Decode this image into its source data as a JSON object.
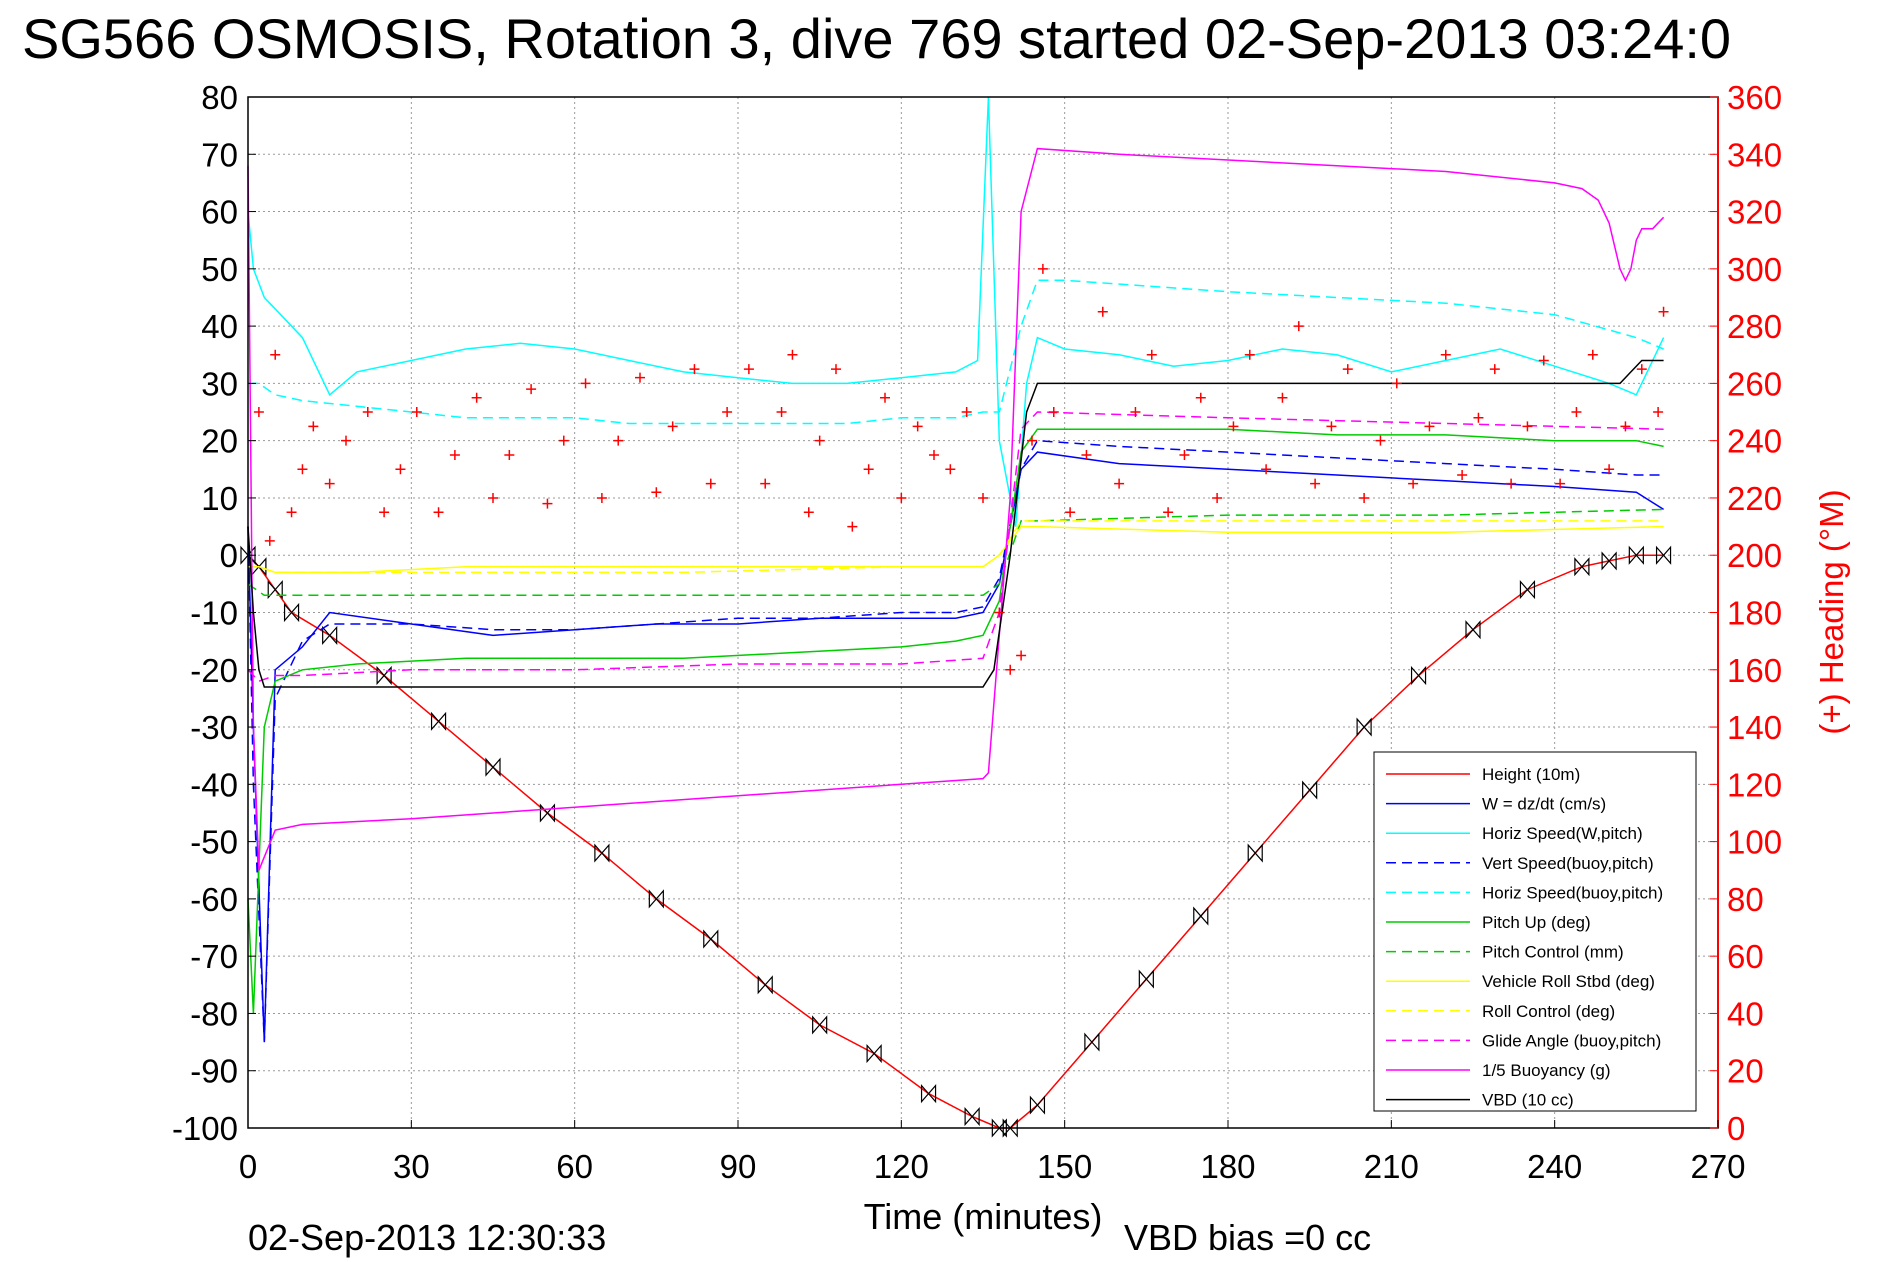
{
  "page": {
    "title": "SG566 OSMOSIS, Rotation 3, dive 769 started 02-Sep-2013 03:24:0",
    "timestamp": "02-Sep-2013 12:30:33",
    "vbd_bias": "VBD bias =0 cc"
  },
  "chart_data": {
    "type": "line",
    "title": "SG566 OSMOSIS, Rotation 3, dive 769 started 02-Sep-2013 03:24:0",
    "xlabel": "Time (minutes)",
    "ylabel": "",
    "y2label": "(+) Heading (°M)",
    "xlim": [
      0,
      270
    ],
    "ylim": [
      -100,
      80
    ],
    "y2lim": [
      0,
      360
    ],
    "x_ticks": [
      0,
      30,
      60,
      90,
      120,
      150,
      180,
      210,
      240,
      270
    ],
    "y_ticks": [
      80,
      70,
      60,
      50,
      40,
      30,
      20,
      10,
      0,
      -10,
      -20,
      -30,
      -40,
      -50,
      -60,
      -70,
      -80,
      -90,
      -100
    ],
    "y2_ticks": [
      360,
      340,
      320,
      300,
      280,
      260,
      240,
      220,
      200,
      180,
      160,
      140,
      120,
      100,
      80,
      60,
      40,
      20,
      0
    ],
    "grid": true,
    "legend_position": "bottom-right",
    "series": [
      {
        "name": "Height (10m)",
        "color": "#ff0000",
        "dash": "solid",
        "marker": "hourglass",
        "x": [
          0,
          2,
          5,
          8,
          15,
          25,
          35,
          45,
          55,
          65,
          75,
          85,
          95,
          105,
          115,
          125,
          133,
          138,
          140,
          145,
          155,
          165,
          175,
          185,
          195,
          205,
          215,
          225,
          235,
          245,
          250,
          255,
          260
        ],
        "y": [
          0,
          -2,
          -6,
          -10,
          -14,
          -21,
          -29,
          -37,
          -45,
          -52,
          -60,
          -67,
          -75,
          -82,
          -87,
          -94,
          -98,
          -100,
          -100,
          -96,
          -85,
          -74,
          -63,
          -52,
          -41,
          -30,
          -21,
          -13,
          -6,
          -2,
          -1,
          0,
          0
        ]
      },
      {
        "name": "W = dz/dt (cm/s)",
        "color": "#0000ff",
        "dash": "solid",
        "x": [
          0,
          1,
          3,
          5,
          10,
          15,
          30,
          45,
          60,
          75,
          90,
          105,
          120,
          130,
          135,
          138,
          142,
          145,
          160,
          180,
          200,
          220,
          240,
          255,
          260
        ],
        "y": [
          5,
          -30,
          -85,
          -20,
          -16,
          -10,
          -12,
          -14,
          -13,
          -12,
          -12,
          -11,
          -11,
          -11,
          -10,
          -5,
          15,
          18,
          16,
          15,
          14,
          13,
          12,
          11,
          8
        ]
      },
      {
        "name": "Horiz Speed(W,pitch)",
        "color": "#00ffff",
        "dash": "solid",
        "x": [
          0,
          1,
          3,
          6,
          10,
          15,
          20,
          30,
          40,
          50,
          60,
          70,
          80,
          90,
          100,
          110,
          120,
          130,
          134,
          136,
          138,
          141,
          143,
          145,
          150,
          160,
          170,
          180,
          190,
          200,
          210,
          220,
          230,
          240,
          250,
          255,
          260
        ],
        "y": [
          60,
          50,
          45,
          42,
          38,
          28,
          32,
          34,
          36,
          37,
          36,
          34,
          32,
          31,
          30,
          30,
          31,
          32,
          34,
          80,
          20,
          5,
          30,
          38,
          36,
          35,
          33,
          34,
          36,
          35,
          32,
          34,
          36,
          33,
          30,
          28,
          38
        ]
      },
      {
        "name": "Vert Speed(buoy,pitch)",
        "color": "#0000ff",
        "dash": "dashed",
        "x": [
          0,
          1,
          3,
          5,
          10,
          15,
          30,
          45,
          60,
          75,
          90,
          105,
          120,
          130,
          135,
          138,
          142,
          145,
          160,
          180,
          200,
          220,
          240,
          255,
          260
        ],
        "y": [
          5,
          -40,
          -85,
          -25,
          -15,
          -12,
          -12,
          -13,
          -13,
          -12,
          -11,
          -11,
          -10,
          -10,
          -9,
          -4,
          15,
          20,
          19,
          18,
          17,
          16,
          15,
          14,
          14
        ]
      },
      {
        "name": "Horiz Speed(buoy,pitch)",
        "color": "#00ffff",
        "dash": "dashed",
        "x": [
          0,
          2,
          5,
          10,
          20,
          30,
          40,
          50,
          60,
          70,
          80,
          90,
          100,
          110,
          120,
          130,
          135,
          138,
          142,
          145,
          150,
          165,
          180,
          200,
          220,
          240,
          255,
          260
        ],
        "y": [
          30,
          30,
          28,
          27,
          26,
          25,
          24,
          24,
          24,
          23,
          23,
          23,
          23,
          23,
          24,
          24,
          25,
          25,
          40,
          48,
          48,
          47,
          46,
          45,
          44,
          42,
          38,
          36
        ]
      },
      {
        "name": "Pitch Up (deg)",
        "color": "#00cc00",
        "dash": "solid",
        "x": [
          0,
          1,
          3,
          5,
          10,
          20,
          40,
          60,
          80,
          100,
          120,
          130,
          135,
          138,
          142,
          145,
          160,
          180,
          200,
          220,
          240,
          255,
          260
        ],
        "y": [
          -60,
          -80,
          -30,
          -22,
          -20,
          -19,
          -18,
          -18,
          -18,
          -17,
          -16,
          -15,
          -14,
          -8,
          18,
          22,
          22,
          22,
          21,
          21,
          20,
          20,
          19
        ]
      },
      {
        "name": "Pitch Control (mm)",
        "color": "#00cc00",
        "dash": "dashed",
        "x": [
          0,
          3,
          10,
          30,
          60,
          90,
          120,
          135,
          138,
          142,
          145,
          180,
          220,
          260
        ],
        "y": [
          -5,
          -7,
          -7,
          -7,
          -7,
          -7,
          -7,
          -7,
          -5,
          6,
          6,
          7,
          7,
          8
        ]
      },
      {
        "name": "Vehicle Roll Stbd (deg)",
        "color": "#ffff00",
        "dash": "solid",
        "x": [
          0,
          2,
          5,
          10,
          20,
          40,
          60,
          80,
          100,
          120,
          135,
          138,
          142,
          145,
          180,
          220,
          260
        ],
        "y": [
          -2,
          -2,
          -3,
          -3,
          -3,
          -2,
          -2,
          -2,
          -2,
          -2,
          -2,
          0,
          5,
          5,
          4,
          4,
          5
        ]
      },
      {
        "name": "Roll Control (deg)",
        "color": "#ffff00",
        "dash": "dashed",
        "x": [
          0,
          2,
          5,
          10,
          40,
          80,
          120,
          135,
          138,
          142,
          145,
          180,
          220,
          260
        ],
        "y": [
          -2,
          -2,
          -3,
          -3,
          -3,
          -3,
          -2,
          -2,
          0,
          6,
          6,
          6,
          6,
          6
        ]
      },
      {
        "name": "Glide Angle (buoy,pitch)",
        "color": "#ff00ff",
        "dash": "dashed",
        "x": [
          0,
          2,
          5,
          10,
          30,
          60,
          90,
          120,
          135,
          138,
          142,
          145,
          180,
          220,
          260
        ],
        "y": [
          -20,
          -22,
          -21,
          -21,
          -20,
          -20,
          -19,
          -19,
          -18,
          -10,
          22,
          25,
          24,
          23,
          22
        ]
      },
      {
        "name": "1/5 Buoyancy (g)",
        "color": "#ff00ff",
        "dash": "solid",
        "x": [
          0,
          1,
          2,
          5,
          10,
          30,
          60,
          90,
          120,
          135,
          136,
          140,
          142,
          145,
          160,
          180,
          200,
          220,
          240,
          245,
          248,
          250,
          252,
          253,
          254,
          255,
          256,
          258,
          260
        ],
        "y": [
          68,
          -30,
          -55,
          -48,
          -47,
          -46,
          -44,
          -42,
          -40,
          -39,
          -38,
          10,
          60,
          71,
          70,
          69,
          68,
          67,
          65,
          64,
          62,
          58,
          50,
          48,
          50,
          55,
          57,
          57,
          59
        ]
      },
      {
        "name": "VBD (10 cc)",
        "color": "#000000",
        "dash": "solid",
        "x": [
          0,
          1,
          2,
          3,
          5,
          135,
          137,
          140,
          143,
          145,
          150,
          200,
          250,
          252,
          254,
          256,
          258,
          260
        ],
        "y": [
          5,
          -10,
          -20,
          -23,
          -23,
          -23,
          -20,
          0,
          25,
          30,
          30,
          30,
          30,
          30,
          32,
          34,
          34,
          34
        ]
      },
      {
        "name": "(+) Heading (°M)",
        "color": "#ff0000",
        "marker": "plus",
        "axis": "right",
        "in_legend": false,
        "x": [
          2,
          4,
          5,
          8,
          10,
          12,
          15,
          18,
          22,
          25,
          28,
          31,
          35,
          38,
          42,
          45,
          48,
          52,
          55,
          58,
          62,
          65,
          68,
          72,
          75,
          78,
          82,
          85,
          88,
          92,
          95,
          98,
          100,
          103,
          105,
          108,
          111,
          114,
          117,
          120,
          123,
          126,
          129,
          132,
          135,
          138,
          140,
          142,
          144,
          146,
          148,
          151,
          154,
          157,
          160,
          163,
          166,
          169,
          172,
          175,
          178,
          181,
          184,
          187,
          190,
          193,
          196,
          199,
          202,
          205,
          208,
          211,
          214,
          217,
          220,
          223,
          226,
          229,
          232,
          235,
          238,
          241,
          244,
          247,
          250,
          253,
          256,
          259,
          260
        ],
        "y": [
          250,
          205,
          270,
          215,
          230,
          245,
          225,
          240,
          250,
          215,
          230,
          250,
          215,
          235,
          255,
          220,
          235,
          258,
          218,
          240,
          260,
          220,
          240,
          262,
          222,
          245,
          265,
          225,
          250,
          265,
          225,
          250,
          270,
          215,
          240,
          265,
          210,
          230,
          255,
          220,
          245,
          235,
          230,
          250,
          220,
          180,
          160,
          165,
          240,
          300,
          250,
          215,
          235,
          285,
          225,
          250,
          270,
          215,
          235,
          255,
          220,
          245,
          270,
          230,
          255,
          280,
          225,
          245,
          265,
          220,
          240,
          260,
          225,
          245,
          270,
          228,
          248,
          265,
          225,
          245,
          268,
          225,
          250,
          270,
          230,
          245,
          265,
          250,
          285
        ]
      }
    ]
  }
}
